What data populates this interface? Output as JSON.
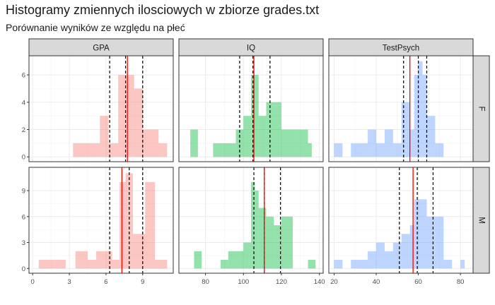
{
  "header": {
    "title": "Histogramy zmiennych ilosciowych w zbiorze grades.txt",
    "subtitle": "Porównanie wyników ze względu na płeć"
  },
  "colors": {
    "GPA": "#F8766D",
    "IQ": "#00BA38",
    "TestPsych": "#619CFF",
    "mean_line": "#FF0000",
    "quartile_line": "#000000",
    "strip_bg": "#D9D9D9",
    "grid": "#EBEBEB"
  },
  "chart_data": {
    "type": "bar",
    "subtype": "faceted-histogram",
    "facet_columns": [
      "GPA",
      "IQ",
      "TestPsych"
    ],
    "facet_rows": [
      "F",
      "M"
    ],
    "grid": true,
    "x_axes": {
      "GPA": {
        "ticks": [
          0,
          3,
          6,
          9
        ],
        "tick_labels": [
          "0",
          "3",
          "6",
          "9"
        ],
        "range": [
          -0.3,
          11.5
        ]
      },
      "IQ": {
        "ticks": [
          80,
          100,
          120,
          140
        ],
        "tick_labels": [
          "80",
          "100",
          "120",
          "140"
        ],
        "range": [
          66,
          142
        ]
      },
      "TestPsych": {
        "ticks": [
          20,
          40,
          60,
          80
        ],
        "tick_labels": [
          "20",
          "40",
          "60",
          "80"
        ],
        "range": [
          17.5,
          86
        ]
      }
    },
    "y_axes": {
      "F": {
        "ticks": [
          0,
          2,
          4,
          6
        ],
        "tick_labels": [
          "0",
          "2",
          "4",
          "6"
        ],
        "range": [
          -0.35,
          7.4
        ]
      },
      "M": {
        "ticks": [
          0,
          3,
          6,
          9
        ],
        "tick_labels": [
          "0",
          "3",
          "6",
          "9"
        ],
        "range": [
          -0.55,
          11.7
        ]
      }
    },
    "panels": [
      {
        "variable": "GPA",
        "group": "F",
        "bins": [
          [
            3.3,
            4.5,
            1
          ],
          [
            4.5,
            5.5,
            1
          ],
          [
            5.5,
            6.2,
            3
          ],
          [
            6.2,
            7.0,
            1
          ],
          [
            7.0,
            7.5,
            6
          ],
          [
            7.5,
            8.3,
            6
          ],
          [
            8.3,
            9.0,
            5
          ],
          [
            9.0,
            10.3,
            2
          ],
          [
            10.3,
            11.0,
            1
          ]
        ],
        "mean": 7.75,
        "quartiles": [
          6.3,
          9.0
        ],
        "median": 7.6
      },
      {
        "variable": "IQ",
        "group": "F",
        "bins": [
          [
            72,
            76,
            2
          ],
          [
            76,
            84,
            0
          ],
          [
            84,
            96,
            1
          ],
          [
            96,
            100,
            2
          ],
          [
            100,
            104,
            3
          ],
          [
            104,
            108,
            6
          ],
          [
            108,
            112,
            3
          ],
          [
            112,
            120,
            4
          ],
          [
            120,
            128,
            2
          ],
          [
            128,
            134,
            2
          ],
          [
            134,
            136,
            1
          ]
        ],
        "mean": 105.5,
        "quartiles": [
          98,
          114
        ],
        "median": 105
      },
      {
        "variable": "TestPsych",
        "group": "F",
        "bins": [
          [
            20,
            24,
            1
          ],
          [
            24,
            28,
            0
          ],
          [
            28,
            36,
            1
          ],
          [
            36,
            40,
            2
          ],
          [
            40,
            44,
            1
          ],
          [
            44,
            48,
            2
          ],
          [
            48,
            52,
            1
          ],
          [
            52,
            56,
            4
          ],
          [
            56,
            58,
            2
          ],
          [
            58,
            60,
            6
          ],
          [
            60,
            62,
            7
          ],
          [
            62,
            64,
            6
          ],
          [
            64,
            68,
            3
          ],
          [
            68,
            72,
            1
          ]
        ],
        "mean": 56,
        "quartiles": [
          53,
          64
        ],
        "median": 60
      },
      {
        "variable": "GPA",
        "group": "M",
        "bins": [
          [
            0.5,
            2.0,
            1
          ],
          [
            2.0,
            2.7,
            1
          ],
          [
            2.7,
            3.5,
            0
          ],
          [
            3.5,
            4.5,
            2
          ],
          [
            4.5,
            5.2,
            1
          ],
          [
            5.2,
            6.5,
            2
          ],
          [
            6.5,
            7.1,
            1
          ],
          [
            7.1,
            7.6,
            10
          ],
          [
            7.6,
            8.2,
            11
          ],
          [
            8.2,
            9.2,
            4
          ],
          [
            9.2,
            10.0,
            10
          ],
          [
            10.0,
            11.0,
            1
          ]
        ],
        "mean": 7.3,
        "quartiles": [
          6.3,
          9.0
        ],
        "median": 7.9
      },
      {
        "variable": "IQ",
        "group": "M",
        "bins": [
          [
            74,
            78,
            2
          ],
          [
            78,
            88,
            0
          ],
          [
            88,
            92,
            1
          ],
          [
            92,
            96,
            2
          ],
          [
            96,
            100,
            2
          ],
          [
            100,
            104,
            3
          ],
          [
            104,
            106,
            10
          ],
          [
            106,
            108,
            9
          ],
          [
            108,
            112,
            7
          ],
          [
            112,
            116,
            6
          ],
          [
            116,
            120,
            5
          ],
          [
            120,
            126,
            6
          ],
          [
            126,
            134,
            0
          ],
          [
            134,
            138,
            1
          ]
        ],
        "mean": 111,
        "quartiles": [
          105.5,
          119.5
        ],
        "median": 111
      },
      {
        "variable": "TestPsych",
        "group": "M",
        "bins": [
          [
            20,
            24,
            1
          ],
          [
            24,
            28,
            0
          ],
          [
            28,
            36,
            1
          ],
          [
            36,
            40,
            2
          ],
          [
            40,
            44,
            3
          ],
          [
            44,
            48,
            2
          ],
          [
            48,
            52,
            3
          ],
          [
            52,
            56,
            4
          ],
          [
            56,
            58,
            5
          ],
          [
            58,
            60,
            8
          ],
          [
            60,
            64,
            8
          ],
          [
            64,
            68,
            6
          ],
          [
            68,
            72,
            6
          ],
          [
            72,
            76,
            1
          ],
          [
            76,
            80,
            0
          ],
          [
            80,
            82,
            1
          ]
        ],
        "mean": 57.5,
        "quartiles": [
          51,
          67
        ],
        "median": 59.5
      }
    ]
  }
}
